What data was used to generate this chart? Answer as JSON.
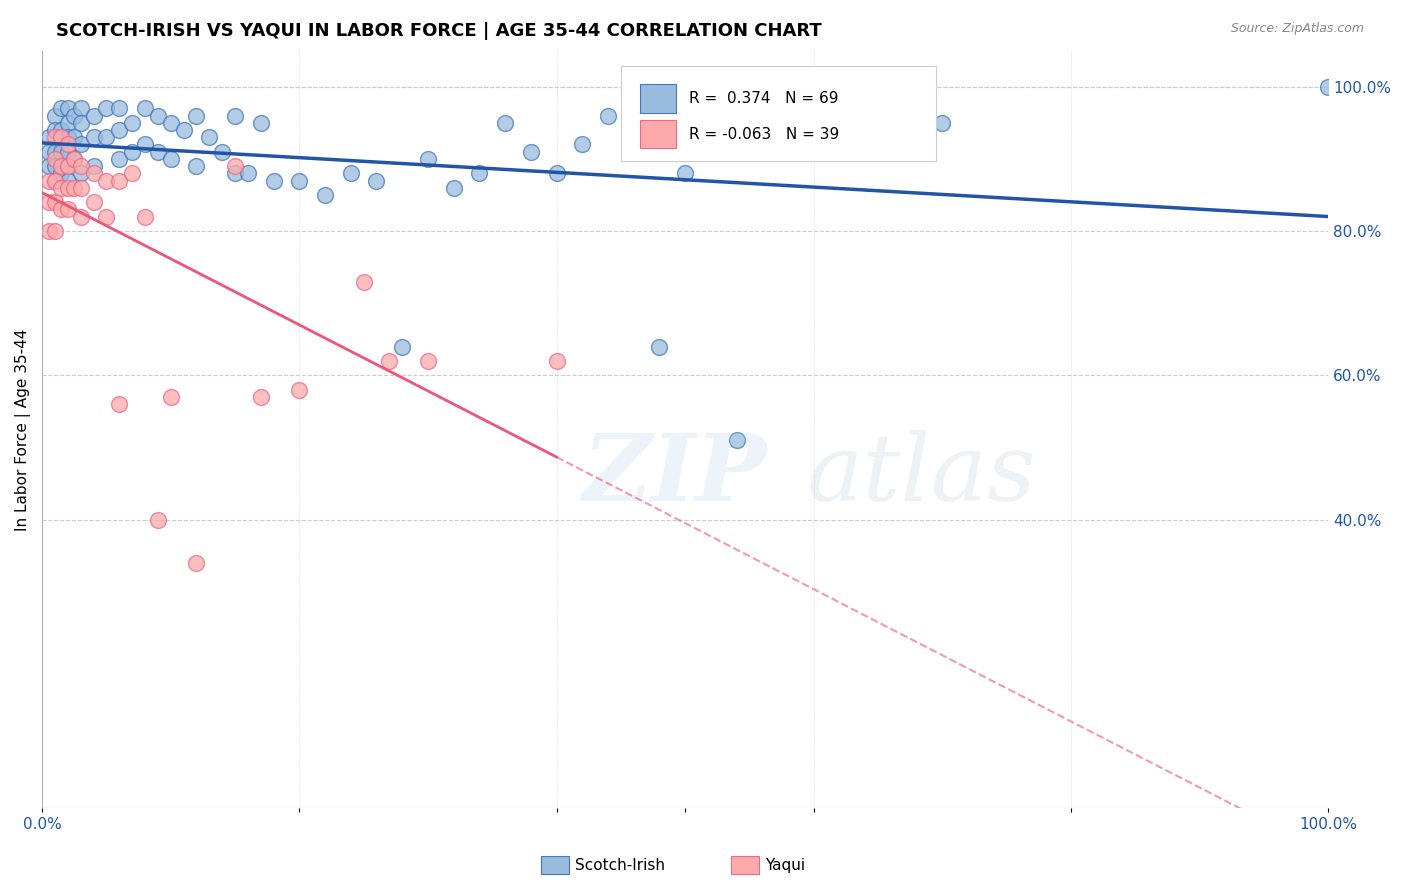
{
  "title": "SCOTCH-IRISH VS YAQUI IN LABOR FORCE | AGE 35-44 CORRELATION CHART",
  "source": "Source: ZipAtlas.com",
  "ylabel": "In Labor Force | Age 35-44",
  "xlim": [
    0.0,
    1.0
  ],
  "ylim": [
    0.0,
    1.0
  ],
  "y_tick_labels_right": [
    "100.0%",
    "80.0%",
    "60.0%",
    "40.0%"
  ],
  "y_tick_positions_right": [
    1.0,
    0.8,
    0.6,
    0.4
  ],
  "R_blue": 0.374,
  "N_blue": 69,
  "R_pink": -0.063,
  "N_pink": 39,
  "blue_color": "#99BBDD",
  "pink_color": "#FFAAAA",
  "blue_edge_color": "#4477BB",
  "pink_edge_color": "#EE6688",
  "blue_line_color": "#2255AA",
  "pink_line_color": "#EE5577",
  "scotch_irish_x": [
    0.005,
    0.005,
    0.005,
    0.01,
    0.01,
    0.01,
    0.01,
    0.01,
    0.015,
    0.015,
    0.015,
    0.015,
    0.02,
    0.02,
    0.02,
    0.02,
    0.02,
    0.02,
    0.025,
    0.025,
    0.025,
    0.03,
    0.03,
    0.03,
    0.03,
    0.04,
    0.04,
    0.04,
    0.05,
    0.05,
    0.06,
    0.06,
    0.06,
    0.07,
    0.07,
    0.08,
    0.08,
    0.09,
    0.09,
    0.1,
    0.1,
    0.11,
    0.12,
    0.12,
    0.13,
    0.14,
    0.15,
    0.15,
    0.16,
    0.17,
    0.18,
    0.2,
    0.22,
    0.24,
    0.26,
    0.28,
    0.3,
    0.32,
    0.34,
    0.36,
    0.38,
    0.4,
    0.42,
    0.44,
    0.48,
    0.5,
    0.54,
    0.58,
    0.7,
    1.0
  ],
  "scotch_irish_y": [
    0.93,
    0.91,
    0.89,
    0.96,
    0.94,
    0.91,
    0.89,
    0.87,
    0.97,
    0.94,
    0.91,
    0.88,
    0.97,
    0.95,
    0.93,
    0.91,
    0.89,
    0.87,
    0.96,
    0.93,
    0.9,
    0.97,
    0.95,
    0.92,
    0.88,
    0.96,
    0.93,
    0.89,
    0.97,
    0.93,
    0.97,
    0.94,
    0.9,
    0.95,
    0.91,
    0.97,
    0.92,
    0.96,
    0.91,
    0.95,
    0.9,
    0.94,
    0.96,
    0.89,
    0.93,
    0.91,
    0.96,
    0.88,
    0.88,
    0.95,
    0.87,
    0.87,
    0.85,
    0.88,
    0.87,
    0.64,
    0.9,
    0.86,
    0.88,
    0.95,
    0.91,
    0.88,
    0.92,
    0.96,
    0.64,
    0.88,
    0.51,
    0.93,
    0.95,
    1.0
  ],
  "yaqui_x": [
    0.005,
    0.005,
    0.005,
    0.01,
    0.01,
    0.01,
    0.01,
    0.01,
    0.015,
    0.015,
    0.015,
    0.015,
    0.02,
    0.02,
    0.02,
    0.02,
    0.025,
    0.025,
    0.03,
    0.03,
    0.03,
    0.04,
    0.04,
    0.05,
    0.05,
    0.06,
    0.06,
    0.07,
    0.08,
    0.09,
    0.1,
    0.12,
    0.15,
    0.17,
    0.2,
    0.25,
    0.27,
    0.3,
    0.4
  ],
  "yaqui_y": [
    0.87,
    0.84,
    0.8,
    0.93,
    0.9,
    0.87,
    0.84,
    0.8,
    0.93,
    0.89,
    0.86,
    0.83,
    0.92,
    0.89,
    0.86,
    0.83,
    0.9,
    0.86,
    0.89,
    0.86,
    0.82,
    0.88,
    0.84,
    0.87,
    0.82,
    0.87,
    0.56,
    0.88,
    0.82,
    0.4,
    0.57,
    0.34,
    0.89,
    0.57,
    0.58,
    0.73,
    0.62,
    0.62,
    0.62
  ]
}
